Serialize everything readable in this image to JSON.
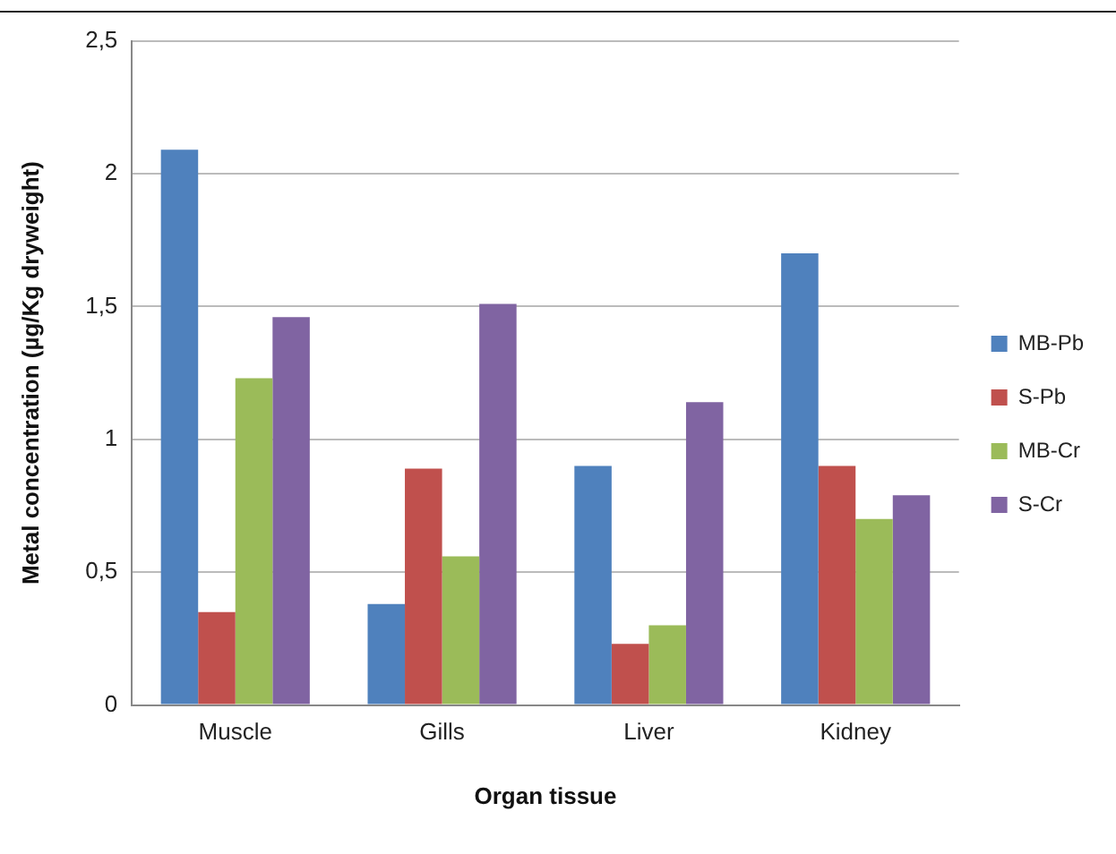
{
  "chart_data": {
    "type": "bar",
    "xlabel": "Organ tissue",
    "ylabel": "Metal concentration (µg/Kg dryweight)",
    "categories": [
      "Muscle",
      "Gills",
      "Liver",
      "Kidney"
    ],
    "series": [
      {
        "name": "MB-Pb",
        "color": "#4f81bd",
        "values": [
          2.09,
          0.38,
          0.9,
          1.7
        ]
      },
      {
        "name": "S-Pb",
        "color": "#c0504d",
        "values": [
          0.35,
          0.89,
          0.23,
          0.9
        ]
      },
      {
        "name": "MB-Cr",
        "color": "#9bbb59",
        "values": [
          1.23,
          0.56,
          0.3,
          0.7
        ]
      },
      {
        "name": "S-Cr",
        "color": "#8064a2",
        "values": [
          1.46,
          1.51,
          1.14,
          0.79
        ]
      }
    ],
    "ylim": [
      0,
      2.5
    ],
    "yticks": [
      0,
      {
        "value": 0.5,
        "label": "0,5"
      },
      1,
      {
        "value": 1.5,
        "label": "1,5"
      },
      2,
      {
        "value": 2.5,
        "label": "2,5"
      }
    ],
    "grid": "y",
    "legend": "right"
  }
}
